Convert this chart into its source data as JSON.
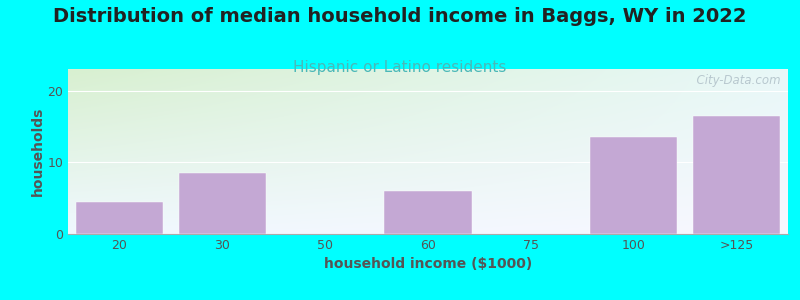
{
  "title": "Distribution of median household income in Baggs, WY in 2022",
  "subtitle": "Hispanic or Latino residents",
  "xlabel": "household income ($1000)",
  "ylabel": "households",
  "background_outer": "#00FFFF",
  "background_inner_top_left": "#d8f0d0",
  "background_inner_top_right": "#e8f8f8",
  "background_inner_bottom": "#f0f8ff",
  "bar_color": "#c4a8d4",
  "bar_edge_color": "#c4a8d4",
  "categories": [
    "20",
    "30",
    "50",
    "60",
    "75",
    "100",
    ">125"
  ],
  "values": [
    4.5,
    8.5,
    0,
    6.0,
    0,
    13.5,
    16.5
  ],
  "ylim": [
    0,
    23
  ],
  "yticks": [
    0,
    10,
    20
  ],
  "watermark": "  City-Data.com",
  "title_fontsize": 14,
  "subtitle_fontsize": 11,
  "axis_label_fontsize": 10,
  "tick_fontsize": 9,
  "title_color": "#222222",
  "subtitle_color": "#4ab8b8",
  "axis_label_color": "#555555",
  "tick_color": "#555555",
  "watermark_color": "#b0c0c8"
}
